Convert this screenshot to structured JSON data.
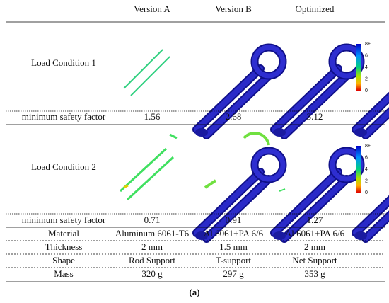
{
  "table": {
    "columns": [
      "Version A",
      "Version B",
      "Optimized"
    ],
    "load_condition_1": "Load Condition 1",
    "load_condition_2": "Load Condition 2",
    "rows": [
      [
        "minimum safety factor",
        "1.56",
        "2.68",
        "3.12"
      ],
      [
        "minimum safety factor",
        "0.71",
        "0.91",
        "1.27"
      ],
      [
        "Material",
        "Aluminum 6061-T6",
        "Al 6061+PA 6/6",
        "Al 6061+PA 6/6"
      ],
      [
        "Thickness",
        "2 mm",
        "1.5 mm",
        "2 mm"
      ],
      [
        "Shape",
        "Rod Support",
        "T-support",
        "Net Support"
      ],
      [
        "Mass",
        "320 g",
        "297 g",
        "353 g"
      ]
    ]
  },
  "colorbar": {
    "labels": [
      "8+",
      "6",
      "4",
      "2",
      "0"
    ]
  },
  "caption": "(a)"
}
